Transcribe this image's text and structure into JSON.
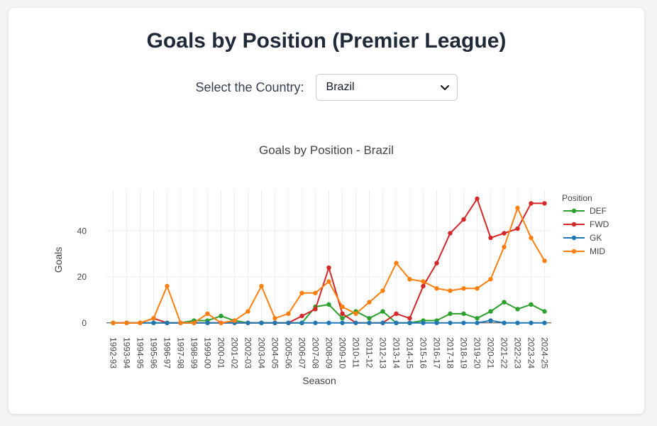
{
  "header": {
    "title": "Goals by Position (Premier League)"
  },
  "filter": {
    "label": "Select the Country:",
    "selected": "Brazil"
  },
  "chart_data": {
    "type": "line",
    "title": "Goals by Position -  Brazil",
    "xlabel": "Season",
    "ylabel": "Goals",
    "legend_title": "Position",
    "legend_position": "right",
    "ylim": [
      -1,
      58
    ],
    "yticks": [
      0,
      20,
      40
    ],
    "grid": true,
    "categories": [
      "1992-93",
      "1993-94",
      "1994-95",
      "1995-96",
      "1996-97",
      "1997-98",
      "1998-99",
      "1999-00",
      "2000-01",
      "2001-02",
      "2002-03",
      "2003-04",
      "2004-05",
      "2005-06",
      "2006-07",
      "2007-08",
      "2008-09",
      "2009-10",
      "2010-11",
      "2011-12",
      "2012-13",
      "2013-14",
      "2014-15",
      "2015-16",
      "2016-17",
      "2017-18",
      "2018-19",
      "2019-20",
      "2020-21",
      "2021-22",
      "2022-23",
      "2023-24",
      "2024-25"
    ],
    "series": [
      {
        "name": "DEF",
        "color": "#2ca02c",
        "values": [
          0,
          0,
          0,
          0,
          0,
          0,
          1,
          1,
          3,
          1,
          0,
          0,
          0,
          0,
          0,
          7,
          8,
          2,
          5,
          2,
          5,
          0,
          0,
          1,
          1,
          4,
          4,
          2,
          5,
          9,
          6,
          8,
          5
        ]
      },
      {
        "name": "FWD",
        "color": "#d62728",
        "values": [
          0,
          0,
          0,
          2,
          0,
          0,
          0,
          0,
          0,
          0,
          0,
          0,
          0,
          0,
          3,
          6,
          24,
          4,
          0,
          0,
          0,
          4,
          2,
          16,
          26,
          39,
          45,
          54,
          37,
          39,
          41,
          52,
          52
        ]
      },
      {
        "name": "GK",
        "color": "#1f77b4",
        "values": [
          0,
          0,
          0,
          0,
          0,
          0,
          0,
          0,
          0,
          0,
          0,
          0,
          0,
          0,
          0,
          0,
          0,
          0,
          0,
          0,
          0,
          0,
          0,
          0,
          0,
          0,
          0,
          0,
          1,
          0,
          0,
          0,
          0
        ]
      },
      {
        "name": "MID",
        "color": "#ff7f0e",
        "values": [
          0,
          0,
          0,
          2,
          16,
          0,
          0,
          4,
          0,
          1,
          5,
          16,
          2,
          4,
          13,
          13,
          18,
          7,
          4,
          9,
          14,
          26,
          19,
          18,
          15,
          14,
          15,
          15,
          19,
          33,
          50,
          37,
          27
        ]
      }
    ]
  }
}
